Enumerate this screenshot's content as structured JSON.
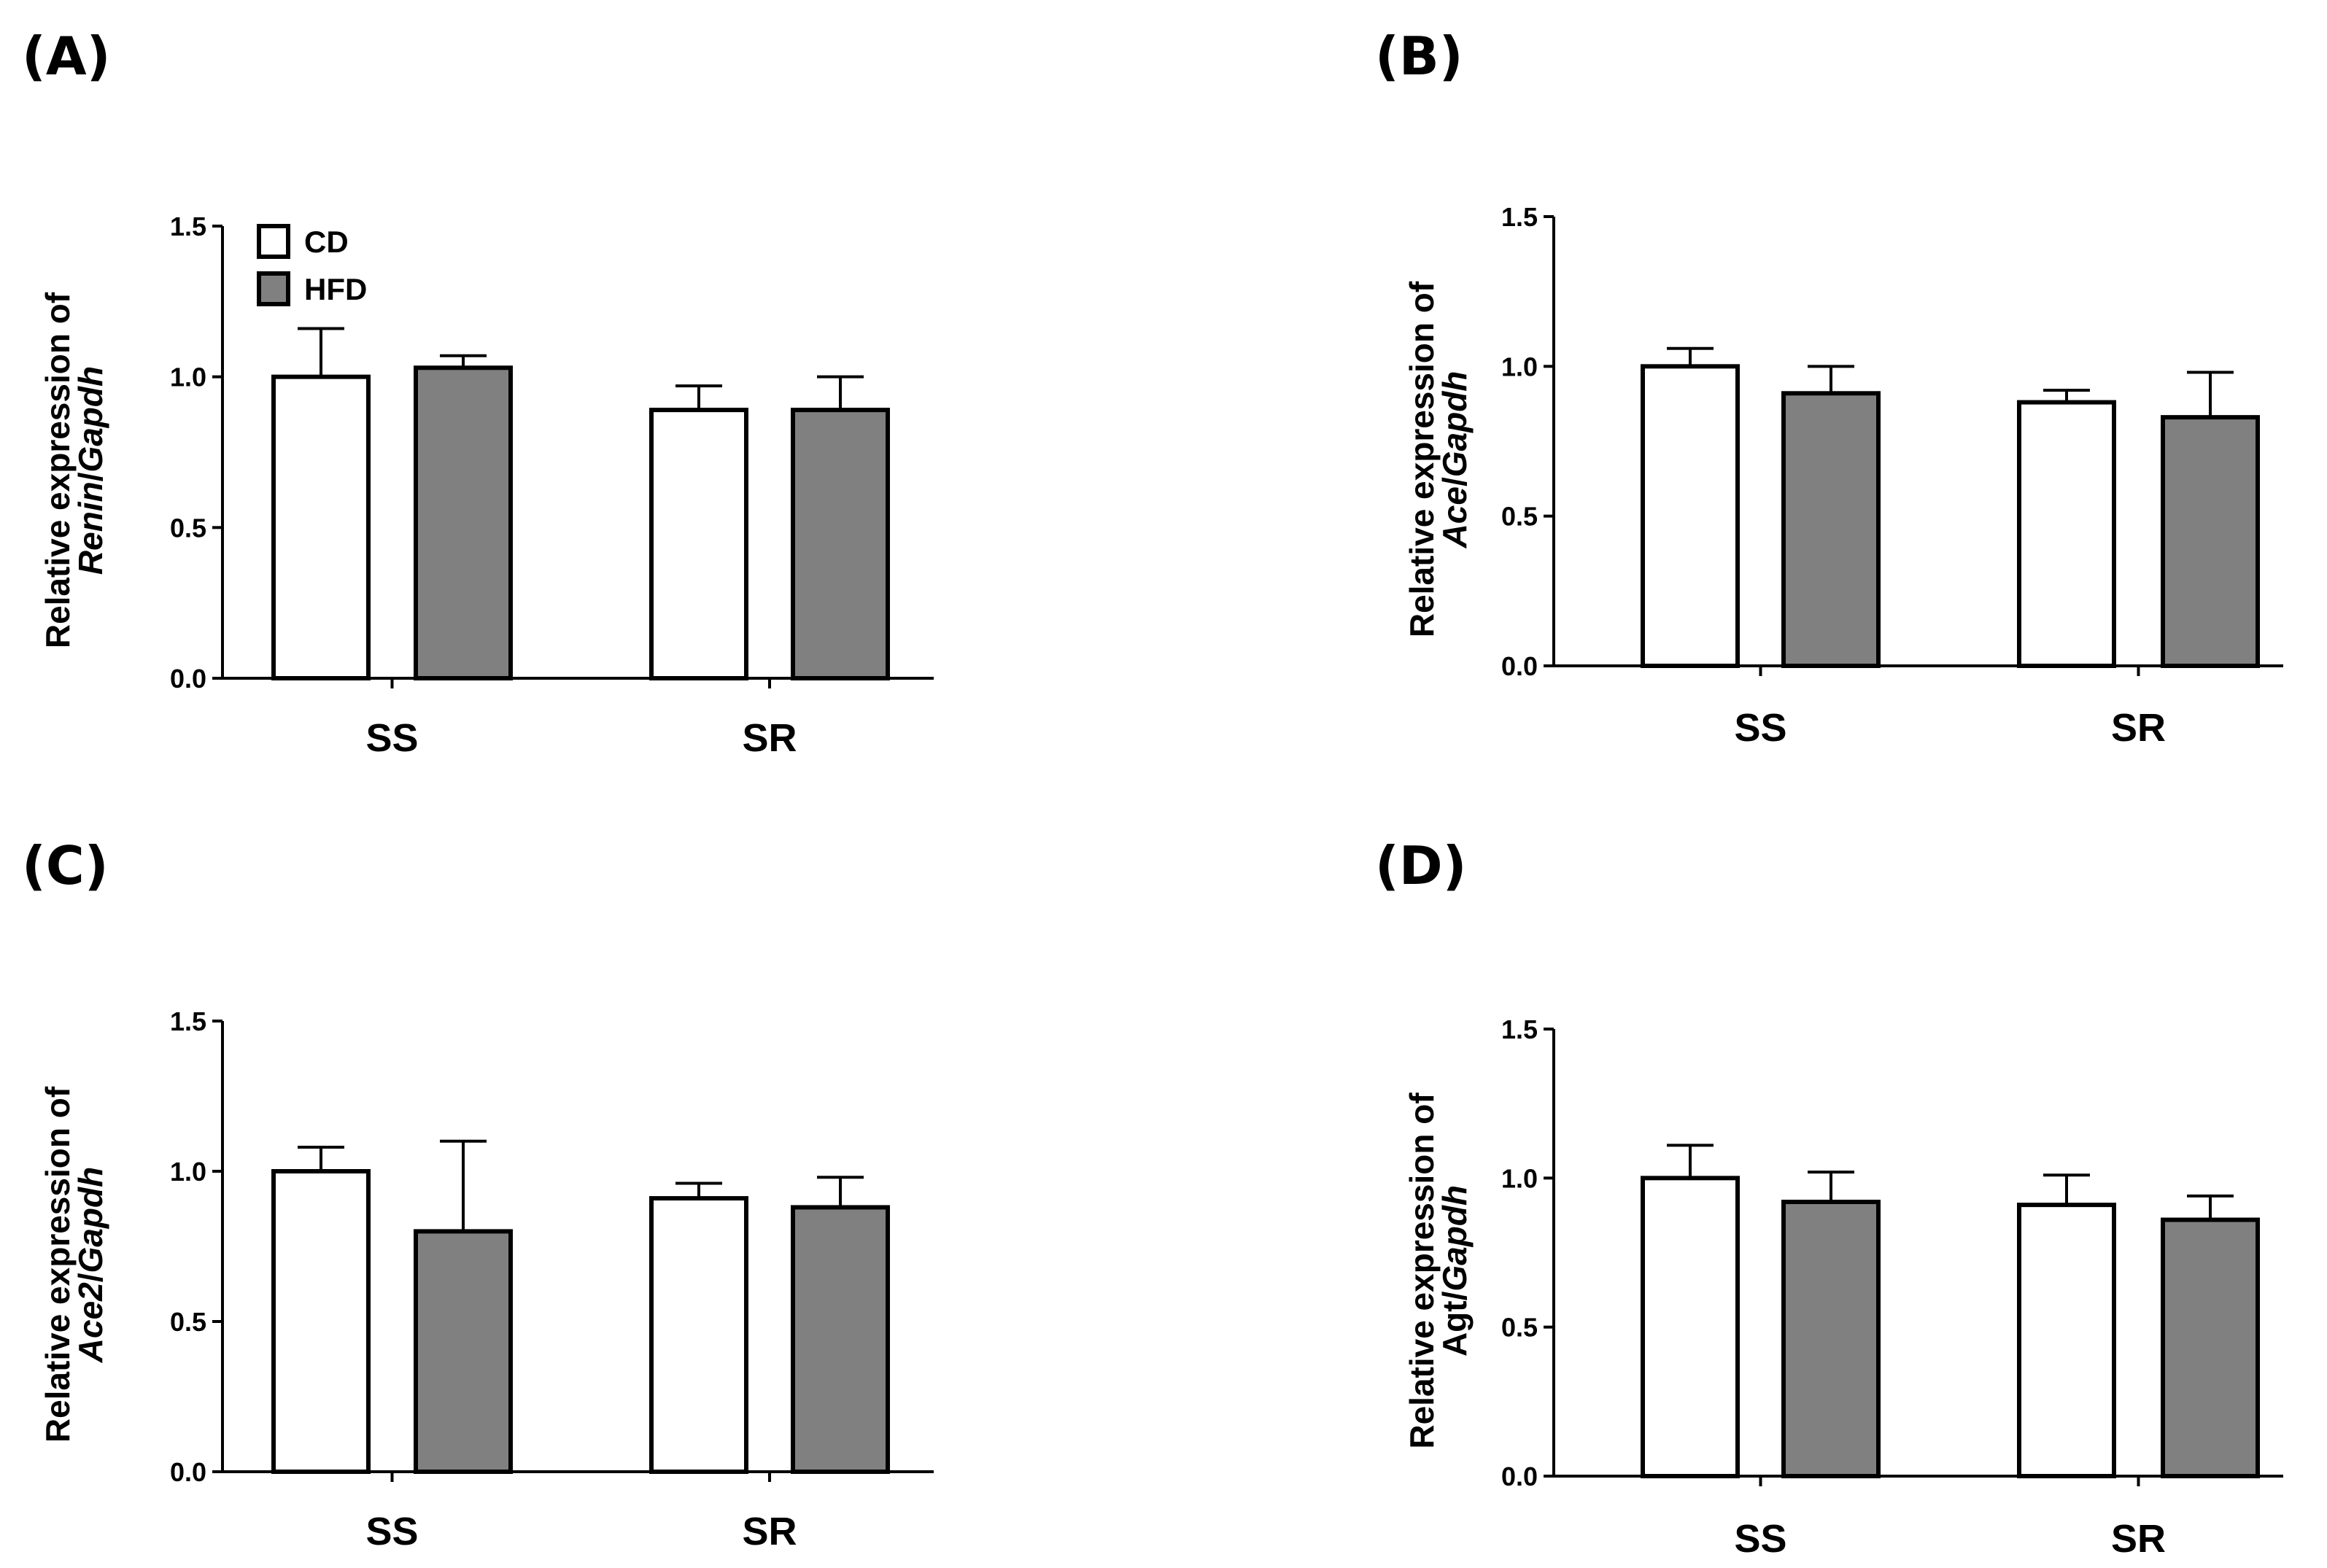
{
  "chart_data": [
    {
      "panel": "(A)",
      "type": "bar",
      "ylabel_line1": "Relative expression of",
      "ylabel_gene": "Renin",
      "ylabel_ref": "/Gapdh",
      "categories": [
        "SS",
        "SR"
      ],
      "series": [
        {
          "name": "CD",
          "values": [
            1.0,
            0.89
          ],
          "errors": [
            0.16,
            0.08
          ]
        },
        {
          "name": "HFD",
          "values": [
            1.03,
            0.89
          ],
          "errors": [
            0.04,
            0.11
          ]
        }
      ],
      "yticks": [
        "0.0",
        "0.5",
        "1.0",
        "1.5"
      ],
      "ylim": [
        0,
        1.5
      ]
    },
    {
      "panel": "(B)",
      "type": "bar",
      "ylabel_line1": "Relative expression of",
      "ylabel_gene": "Ace",
      "ylabel_ref": "/Gapdh",
      "categories": [
        "SS",
        "SR"
      ],
      "series": [
        {
          "name": "CD",
          "values": [
            1.0,
            0.88
          ],
          "errors": [
            0.06,
            0.04
          ]
        },
        {
          "name": "HFD",
          "values": [
            0.91,
            0.83
          ],
          "errors": [
            0.09,
            0.15
          ]
        }
      ],
      "yticks": [
        "0.0",
        "0.5",
        "1.0",
        "1.5"
      ],
      "ylim": [
        0,
        1.5
      ]
    },
    {
      "panel": "(C)",
      "type": "bar",
      "ylabel_line1": "Relative expression of",
      "ylabel_gene": "Ace2",
      "ylabel_ref": "/Gapdh",
      "categories": [
        "SS",
        "SR"
      ],
      "series": [
        {
          "name": "CD",
          "values": [
            1.0,
            0.91
          ],
          "errors": [
            0.08,
            0.05
          ]
        },
        {
          "name": "HFD",
          "values": [
            0.8,
            0.88
          ],
          "errors": [
            0.3,
            0.1
          ]
        }
      ],
      "yticks": [
        "0.0",
        "0.5",
        "1.0",
        "1.5"
      ],
      "ylim": [
        0,
        1.5
      ]
    },
    {
      "panel": "(D)",
      "type": "bar",
      "ylabel_line1": "Relative expression of",
      "ylabel_gene": "Agt",
      "ylabel_ref": "/Gapdh",
      "categories": [
        "SS",
        "SR"
      ],
      "series": [
        {
          "name": "CD",
          "values": [
            1.0,
            0.91
          ],
          "errors": [
            0.11,
            0.1
          ]
        },
        {
          "name": "HFD",
          "values": [
            0.92,
            0.86
          ],
          "errors": [
            0.1,
            0.08
          ]
        }
      ],
      "yticks": [
        "0.0",
        "0.5",
        "1.0",
        "1.5"
      ],
      "ylim": [
        0,
        1.5
      ]
    }
  ],
  "legend": {
    "items": [
      {
        "label": "CD",
        "color": "#ffffff"
      },
      {
        "label": "HFD",
        "color": "#808080"
      }
    ]
  },
  "colors": {
    "CD": "#ffffff",
    "HFD": "#808080",
    "axis": "#000000"
  }
}
